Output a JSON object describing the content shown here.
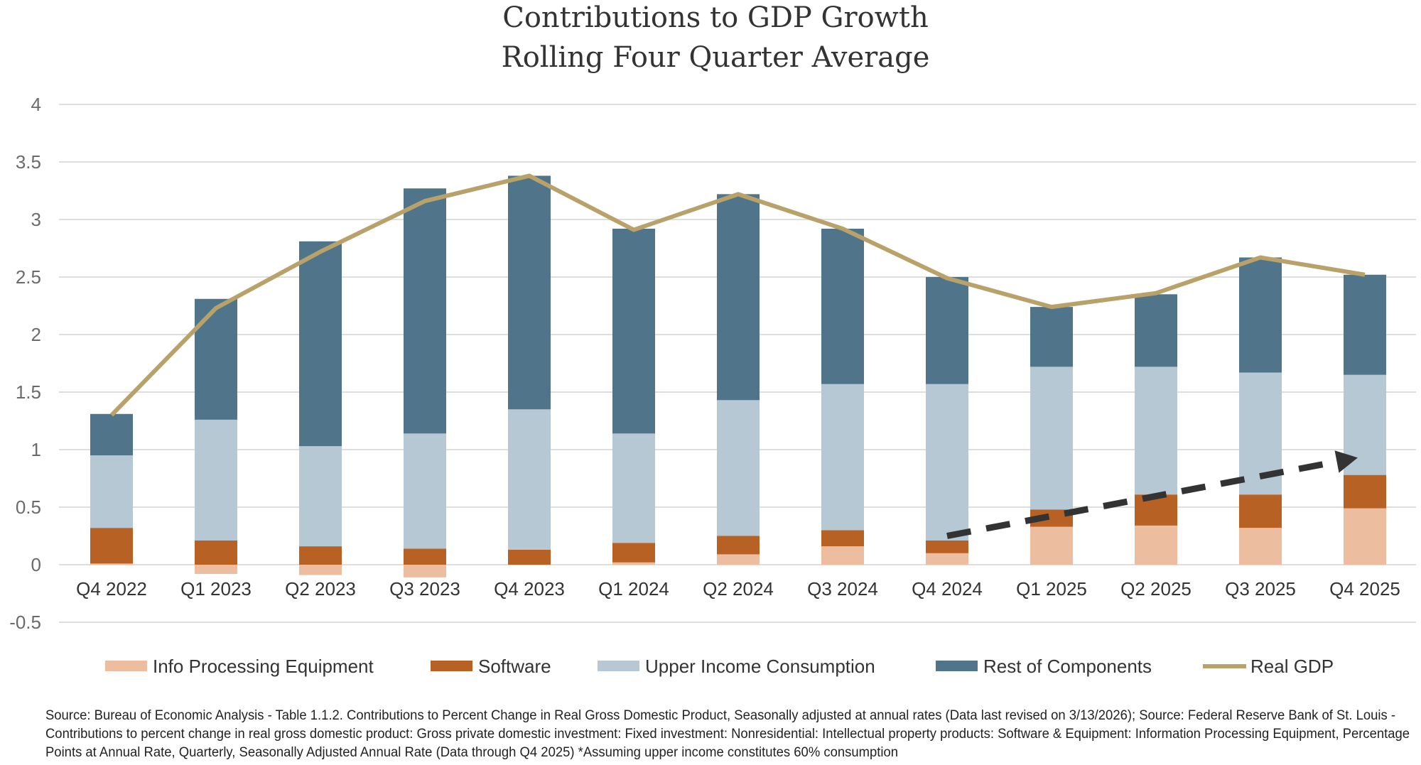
{
  "chart_data": {
    "type": "bar",
    "stacked": true,
    "title": "Contributions to GDP Growth",
    "subtitle": "Rolling Four Quarter Average",
    "xlabel": "",
    "ylabel": "",
    "ylim": [
      -0.5,
      4
    ],
    "yticks": [
      "4",
      "3.5",
      "3",
      "2.5",
      "2",
      "1.5",
      "1",
      "0.5",
      "0",
      "-0.5"
    ],
    "ytick_values": [
      4,
      3.5,
      3,
      2.5,
      2,
      1.5,
      1,
      0.5,
      0,
      -0.5
    ],
    "grid": true,
    "legend_position": "bottom",
    "categories": [
      "Q4 2022",
      "Q1 2023",
      "Q2 2023",
      "Q3 2023",
      "Q4 2023",
      "Q1 2024",
      "Q2 2024",
      "Q3 2024",
      "Q4 2024",
      "Q1 2025",
      "Q2 2025",
      "Q3 2025",
      "Q4 2025"
    ],
    "series": [
      {
        "name": "Info Processing Equipment",
        "kind": "bar",
        "color": "#ecbd9e",
        "values": [
          0.01,
          -0.08,
          -0.09,
          -0.11,
          0.0,
          0.02,
          0.09,
          0.16,
          0.1,
          0.33,
          0.34,
          0.32,
          0.49
        ]
      },
      {
        "name": "Software",
        "kind": "bar",
        "color": "#b86125",
        "values": [
          0.31,
          0.21,
          0.16,
          0.14,
          0.13,
          0.17,
          0.16,
          0.14,
          0.11,
          0.15,
          0.27,
          0.29,
          0.29
        ]
      },
      {
        "name": "Upper Income Consumption",
        "kind": "bar",
        "color": "#b6c8d4",
        "values": [
          0.63,
          1.05,
          0.87,
          1.0,
          1.22,
          0.95,
          1.18,
          1.27,
          1.36,
          1.24,
          1.11,
          1.06,
          0.87
        ]
      },
      {
        "name": "Rest of Components",
        "kind": "bar",
        "color": "#507489",
        "values": [
          0.36,
          1.05,
          1.78,
          2.13,
          2.03,
          1.78,
          1.79,
          1.35,
          0.93,
          0.52,
          0.63,
          1.0,
          0.87
        ]
      },
      {
        "name": "Real GDP",
        "kind": "line",
        "color": "#b9a26a",
        "values": [
          1.3,
          2.23,
          2.72,
          3.16,
          3.38,
          2.91,
          3.22,
          2.92,
          2.49,
          2.24,
          2.36,
          2.67,
          2.52
        ]
      }
    ],
    "annotations": [
      {
        "type": "dashed-arrow",
        "color": "#333333",
        "from": {
          "x": "Q4 2024",
          "y": 0.25
        },
        "to": {
          "x": "Q4 2025",
          "y": 0.93
        }
      }
    ]
  },
  "source": [
    "Source: Bureau of Economic Analysis - Table 1.1.2. Contributions to Percent Change in Real Gross Domestic Product, Seasonally adjusted at annual rates (Data last revised on 3/13/2026); Source: Federal Reserve Bank of St. Louis -",
    "Contributions to percent change in real gross domestic product: Gross private domestic investment: Fixed investment: Nonresidential: Intellectual property products: Software & Equipment: Information Processing Equipment, Percentage",
    "Points at Annual Rate, Quarterly, Seasonally Adjusted Annual Rate (Data through Q4 2025) *Assuming upper income constitutes 60% consumption"
  ]
}
